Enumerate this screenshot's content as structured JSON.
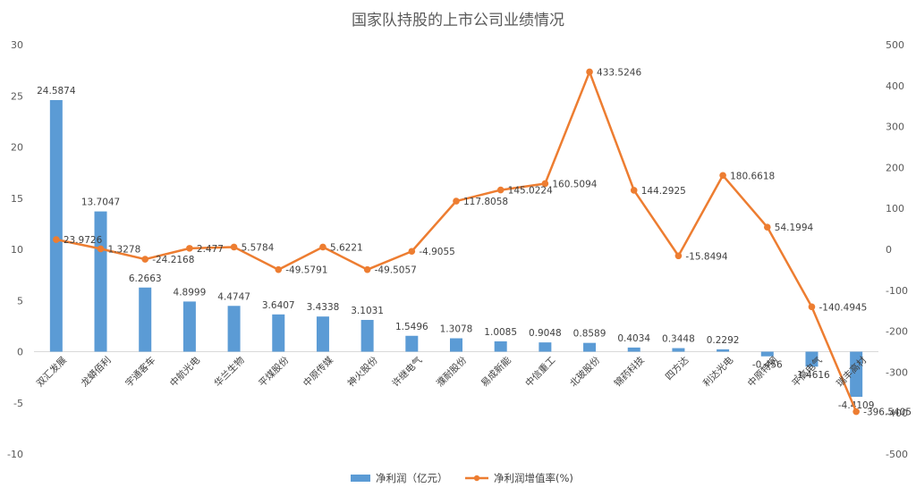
{
  "chart_data": {
    "type": "bar",
    "title": "国家队持股的上市公司业绩情况",
    "categories": [
      "双汇发展",
      "龙蟒佰利",
      "宇通客车",
      "中航光电",
      "华兰生物",
      "平煤股份",
      "中原传媒",
      "神火股份",
      "许继电气",
      "濮耐股份",
      "易成新能",
      "中信重工",
      "北玻股份",
      "锦药科技",
      "四方达",
      "利达光电",
      "中原特钢",
      "平高电气",
      "瑞丰高材"
    ],
    "series": [
      {
        "name": "净利润（亿元）",
        "kind": "bar",
        "axis": "left",
        "color": "#5B9BD5",
        "values": [
          24.5874,
          13.7047,
          6.2663,
          4.8999,
          4.4747,
          3.6407,
          3.4338,
          3.1031,
          1.5496,
          1.3078,
          1.0085,
          0.9048,
          0.8589,
          0.4034,
          0.3448,
          0.2292,
          -0.456,
          -1.4616,
          -4.4109
        ],
        "labels": [
          "24.5874",
          "13.7047",
          "6.2663",
          "4.8999",
          "4.4747",
          "3.6407",
          "3.4338",
          "3.1031",
          "1.5496",
          "1.3078",
          "1.0085",
          "0.9048",
          "0.8589",
          "0.4034",
          "0.3448",
          "0.2292",
          "-0.456",
          "-1.4616",
          "-4.4109"
        ]
      },
      {
        "name": "净利润增值率(%)",
        "kind": "line",
        "axis": "right",
        "color": "#ED7D31",
        "values": [
          23.9726,
          1.3278,
          -24.2168,
          2.477,
          5.5784,
          -49.5791,
          5.6221,
          -49.5057,
          -4.9055,
          117.8058,
          145.0224,
          160.5094,
          433.5246,
          144.2925,
          -15.8494,
          180.6618,
          54.1994,
          -140.4945,
          -396.5405
        ],
        "labels": [
          "23.9726",
          "1.3278",
          "-24.2168",
          "2.477",
          "5.5784",
          "-49.5791",
          "5.6221",
          "-49.5057",
          "-4.9055",
          "117.8058",
          "145.0224",
          "160.5094",
          "433.5246",
          "144.2925",
          "-15.8494",
          "180.6618",
          "54.1994",
          "-140.4945",
          "-396.5405"
        ]
      }
    ],
    "y_left": {
      "min": -10,
      "max": 30,
      "step": 5,
      "ticks": [
        "-10",
        "-5",
        "0",
        "5",
        "10",
        "15",
        "20",
        "25",
        "30"
      ]
    },
    "y_right": {
      "min": -500,
      "max": 500,
      "step": 100,
      "ticks": [
        "-500",
        "-400",
        "-300",
        "-200",
        "-100",
        "0",
        "100",
        "200",
        "300",
        "400",
        "500"
      ]
    },
    "grid": false,
    "legend_position": "bottom"
  }
}
